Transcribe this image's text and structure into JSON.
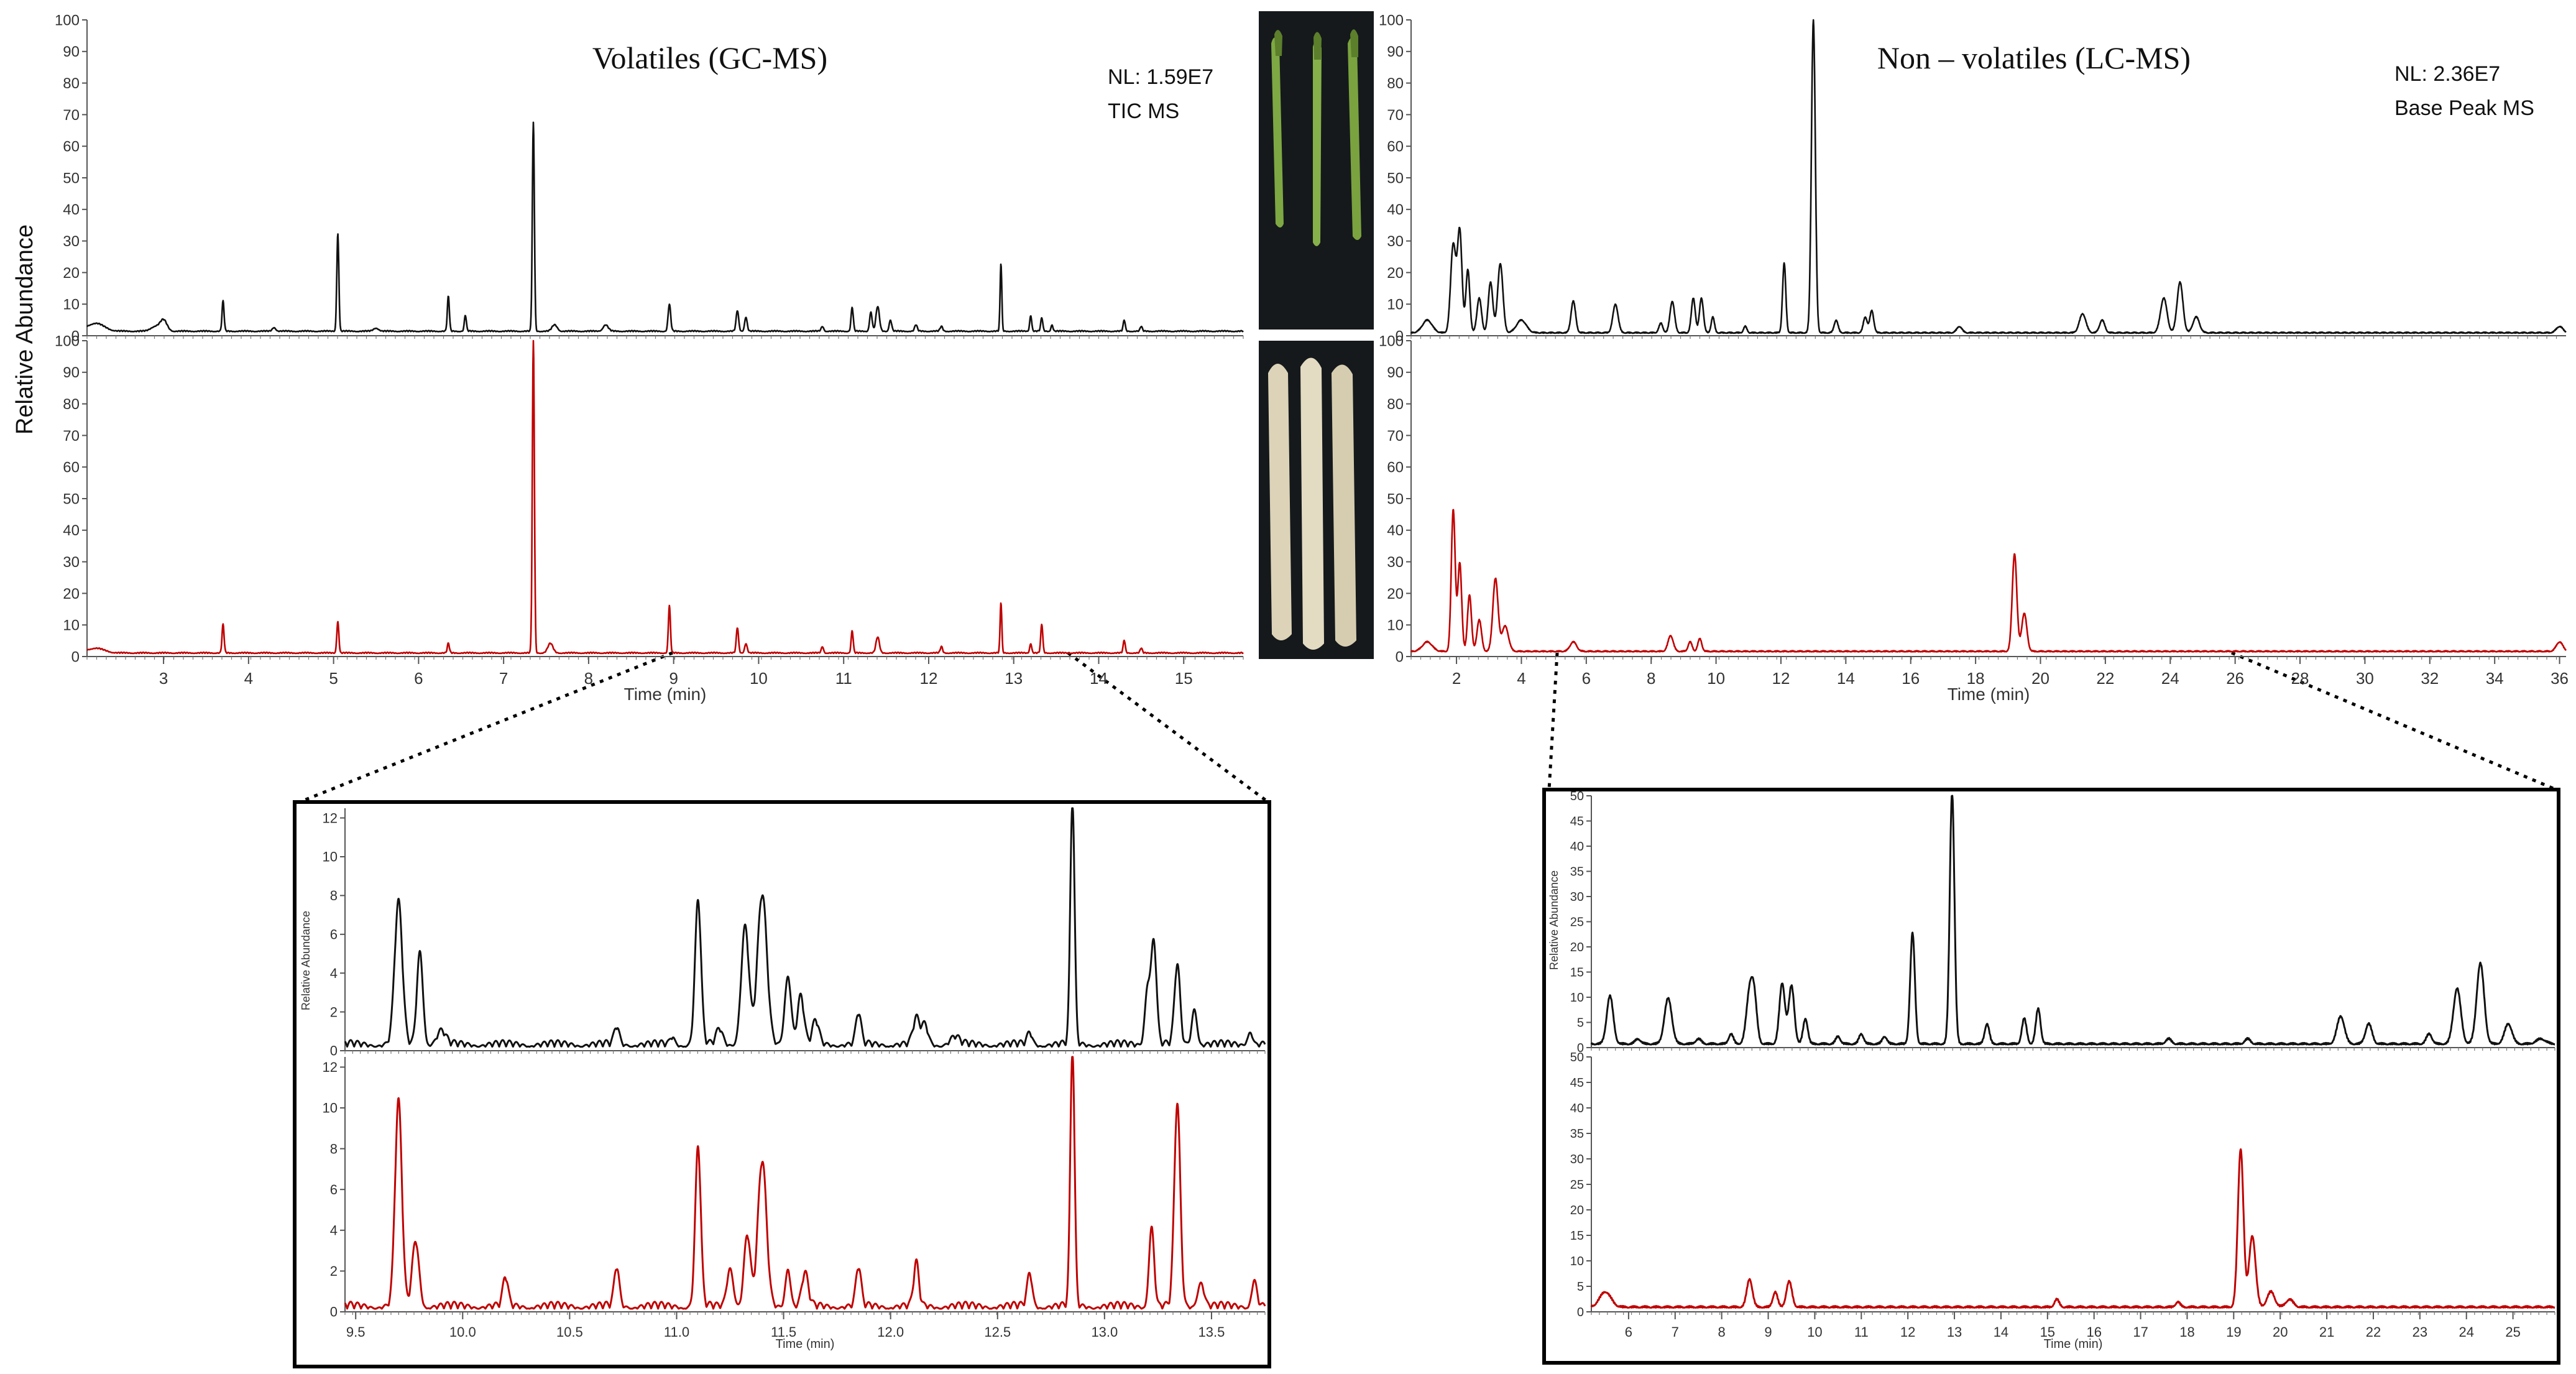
{
  "figure": {
    "ylabel": "Relative Abundance",
    "gc_title": "Volatiles (GC-MS)",
    "lc_title": "Non – volatiles (LC-MS)",
    "gc_nl": "NL: 1.59E7",
    "gc_scan": "TIC MS",
    "lc_nl": "NL: 2.36E7",
    "lc_scan": "Base Peak MS",
    "xlabel": "Time (min)",
    "inset_ylabel": "Relative Abundance"
  },
  "photos": {
    "green_caption": "",
    "white_caption": ""
  },
  "colors": {
    "green_trace": "#111111",
    "white_trace": "#c00000",
    "frame": "#000000",
    "asparagus_green": "#6e9a35",
    "asparagus_white": "#d8cfb4",
    "photo_bg": "#15191c"
  },
  "chart_data": [
    {
      "type": "line",
      "id": "gc-main",
      "title": "Volatiles (GC-MS)",
      "xlabel": "Time (min)",
      "ylabel": "Relative Abundance",
      "xlim": [
        2.1,
        15.7
      ],
      "ylim": [
        0,
        100
      ],
      "xticks": [
        3,
        4,
        5,
        6,
        7,
        8,
        9,
        10,
        11,
        12,
        13,
        14,
        15
      ],
      "yticks": [
        0,
        10,
        20,
        30,
        40,
        50,
        60,
        70,
        80,
        90,
        100
      ],
      "annotations": [
        "NL: 1.59E7",
        "TIC MS"
      ],
      "series": [
        {
          "role": "green asparagus",
          "color": "#111111",
          "baseline": 1.3,
          "peaks": [
            [
              2.2,
              2.5,
              0.1
            ],
            [
              2.9,
              1.5,
              0.05
            ],
            [
              3.0,
              3.5,
              0.04
            ],
            [
              3.7,
              9.5,
              0.012
            ],
            [
              4.3,
              1.2,
              0.02
            ],
            [
              5.05,
              31,
              0.012
            ],
            [
              5.5,
              1,
              0.03
            ],
            [
              6.35,
              11,
              0.012
            ],
            [
              6.55,
              5,
              0.012
            ],
            [
              7.35,
              66,
              0.012
            ],
            [
              7.6,
              2,
              0.03
            ],
            [
              8.2,
              2,
              0.03
            ],
            [
              8.95,
              8.5,
              0.015
            ],
            [
              9.75,
              6.5,
              0.015
            ],
            [
              9.85,
              4.5,
              0.015
            ],
            [
              10.75,
              1.5,
              0.015
            ],
            [
              11.1,
              7.5,
              0.013
            ],
            [
              11.32,
              6,
              0.015
            ],
            [
              11.4,
              7.8,
              0.02
            ],
            [
              11.55,
              3.5,
              0.015
            ],
            [
              11.85,
              2,
              0.015
            ],
            [
              12.15,
              1.5,
              0.015
            ],
            [
              12.85,
              21.5,
              0.01
            ],
            [
              13.2,
              5,
              0.012
            ],
            [
              13.33,
              4.2,
              0.012
            ],
            [
              13.45,
              2,
              0.012
            ],
            [
              14.3,
              3.5,
              0.012
            ],
            [
              14.5,
              1.5,
              0.012
            ]
          ]
        },
        {
          "role": "white asparagus",
          "color": "#c00000",
          "baseline": 1.0,
          "peaks": [
            [
              2.2,
              1.5,
              0.1
            ],
            [
              3.7,
              9,
              0.012
            ],
            [
              5.05,
              10,
              0.012
            ],
            [
              6.35,
              3,
              0.012
            ],
            [
              7.35,
              99,
              0.012
            ],
            [
              7.55,
              3,
              0.03
            ],
            [
              8.95,
              15,
              0.012
            ],
            [
              9.75,
              8,
              0.013
            ],
            [
              9.85,
              3,
              0.015
            ],
            [
              10.75,
              2,
              0.013
            ],
            [
              11.1,
              7,
              0.012
            ],
            [
              11.4,
              5,
              0.02
            ],
            [
              12.15,
              2,
              0.013
            ],
            [
              12.85,
              16,
              0.01
            ],
            [
              13.2,
              3,
              0.012
            ],
            [
              13.33,
              9,
              0.012
            ],
            [
              14.3,
              4,
              0.012
            ],
            [
              14.5,
              1.5,
              0.012
            ]
          ]
        }
      ]
    },
    {
      "type": "line",
      "id": "lc-main",
      "title": "Non – volatiles (LC-MS)",
      "xlabel": "Time (min)",
      "ylabel": "Relative Abundance",
      "xlim": [
        0.6,
        36.2
      ],
      "ylim": [
        0,
        100
      ],
      "xticks": [
        2,
        4,
        6,
        8,
        10,
        12,
        14,
        16,
        18,
        20,
        22,
        24,
        26,
        28,
        30,
        32,
        34,
        36
      ],
      "xtick_labels": [
        "2",
        "4",
        "6",
        "8",
        "10",
        "12",
        "14",
        "16",
        "18",
        "20",
        "22",
        "24",
        "26",
        "28",
        "30",
        "32",
        "34",
        "36"
      ],
      "yticks": [
        0,
        10,
        20,
        30,
        40,
        50,
        60,
        70,
        80,
        90,
        100
      ],
      "annotations": [
        "NL: 2.36E7",
        "Base Peak MS"
      ],
      "series": [
        {
          "role": "green asparagus",
          "color": "#111111",
          "baseline": 0.8,
          "peaks": [
            [
              1.1,
              4,
              0.15
            ],
            [
              1.9,
              28,
              0.08
            ],
            [
              2.1,
              32,
              0.07
            ],
            [
              2.35,
              20,
              0.06
            ],
            [
              2.7,
              11,
              0.07
            ],
            [
              3.05,
              16,
              0.07
            ],
            [
              3.35,
              22,
              0.08
            ],
            [
              4.0,
              4,
              0.15
            ],
            [
              5.6,
              10,
              0.07
            ],
            [
              6.9,
              9,
              0.08
            ],
            [
              8.3,
              3,
              0.06
            ],
            [
              8.65,
              10,
              0.07
            ],
            [
              9.3,
              11,
              0.06
            ],
            [
              9.55,
              11,
              0.06
            ],
            [
              9.9,
              5,
              0.05
            ],
            [
              10.9,
              2,
              0.05
            ],
            [
              12.1,
              22,
              0.05
            ],
            [
              13.0,
              99,
              0.06
            ],
            [
              13.7,
              4,
              0.06
            ],
            [
              14.6,
              5,
              0.06
            ],
            [
              14.8,
              7,
              0.06
            ],
            [
              17.5,
              2,
              0.08
            ],
            [
              21.3,
              6,
              0.1
            ],
            [
              21.9,
              4,
              0.08
            ],
            [
              23.8,
              11,
              0.1
            ],
            [
              24.3,
              16,
              0.09
            ],
            [
              24.8,
              5,
              0.1
            ],
            [
              36,
              2,
              0.1
            ]
          ]
        },
        {
          "role": "white asparagus",
          "color": "#c00000",
          "baseline": 1.5,
          "peaks": [
            [
              1.1,
              3,
              0.15
            ],
            [
              1.9,
              45,
              0.06
            ],
            [
              2.1,
              28,
              0.06
            ],
            [
              2.4,
              18,
              0.06
            ],
            [
              2.7,
              10,
              0.07
            ],
            [
              3.2,
              23,
              0.08
            ],
            [
              3.5,
              8,
              0.1
            ],
            [
              5.6,
              3,
              0.1
            ],
            [
              8.6,
              5,
              0.08
            ],
            [
              9.2,
              3,
              0.06
            ],
            [
              9.5,
              4,
              0.06
            ],
            [
              19.2,
              31,
              0.07
            ],
            [
              19.5,
              12,
              0.08
            ],
            [
              36,
              3,
              0.1
            ]
          ]
        }
      ]
    },
    {
      "type": "line",
      "id": "gc-inset",
      "xlabel": "Time (min)",
      "ylabel": "Relative Abundance",
      "xlim": [
        9.45,
        13.75
      ],
      "ylim": [
        0,
        12.5
      ],
      "xticks": [
        9.5,
        10.0,
        10.5,
        11.0,
        11.5,
        12.0,
        12.5,
        13.0,
        13.5
      ],
      "xtick_labels": [
        "9.5",
        "10.0",
        "10.5",
        "11.0",
        "11.5",
        "12.0",
        "12.5",
        "13.0",
        "13.5"
      ],
      "yticks": [
        0,
        2,
        4,
        6,
        8,
        10,
        12
      ],
      "series": [
        {
          "role": "green asparagus",
          "color": "#111111",
          "baseline": 0.2,
          "peaks": [
            [
              9.7,
              7.3,
              0.018
            ],
            [
              9.8,
              4.8,
              0.014
            ],
            [
              9.9,
              0.7,
              0.02
            ],
            [
              10.72,
              0.9,
              0.012
            ],
            [
              10.98,
              0.4,
              0.01
            ],
            [
              11.1,
              7.4,
              0.014
            ],
            [
              11.2,
              0.8,
              0.015
            ],
            [
              11.32,
              6.1,
              0.018
            ],
            [
              11.4,
              7.7,
              0.022
            ],
            [
              11.52,
              3.6,
              0.015
            ],
            [
              11.58,
              2.5,
              0.015
            ],
            [
              11.65,
              1.2,
              0.015
            ],
            [
              11.85,
              1.6,
              0.012
            ],
            [
              12.12,
              1.3,
              0.015
            ],
            [
              12.16,
              1.0,
              0.015
            ],
            [
              12.3,
              0.4,
              0.02
            ],
            [
              12.65,
              0.6,
              0.012
            ],
            [
              12.85,
              12.5,
              0.01
            ],
            [
              13.2,
              2.8,
              0.012
            ],
            [
              13.23,
              5.3,
              0.013
            ],
            [
              13.34,
              4.1,
              0.013
            ],
            [
              13.42,
              1.9,
              0.012
            ],
            [
              13.68,
              0.7,
              0.012
            ]
          ]
        },
        {
          "role": "white asparagus",
          "color": "#c00000",
          "baseline": 0.15,
          "peaks": [
            [
              9.7,
              10.0,
              0.016
            ],
            [
              9.78,
              3.2,
              0.016
            ],
            [
              10.2,
              1.4,
              0.012
            ],
            [
              10.72,
              1.9,
              0.012
            ],
            [
              11.1,
              7.8,
              0.013
            ],
            [
              11.25,
              1.9,
              0.015
            ],
            [
              11.33,
              3.5,
              0.015
            ],
            [
              11.4,
              7.1,
              0.02
            ],
            [
              11.52,
              1.9,
              0.012
            ],
            [
              11.6,
              1.6,
              0.015
            ],
            [
              11.85,
              1.9,
              0.012
            ],
            [
              12.12,
              2.1,
              0.012
            ],
            [
              12.65,
              1.6,
              0.012
            ],
            [
              12.85,
              12.5,
              0.01
            ],
            [
              13.22,
              3.9,
              0.012
            ],
            [
              13.34,
              9.9,
              0.014
            ],
            [
              13.45,
              1.2,
              0.015
            ],
            [
              13.7,
              1.3,
              0.012
            ]
          ]
        }
      ]
    },
    {
      "type": "line",
      "id": "lc-inset",
      "xlabel": "Time (min)",
      "ylabel": "Relative Abundance",
      "xlim": [
        5.2,
        25.9
      ],
      "ylim": [
        0,
        50
      ],
      "xticks": [
        6,
        7,
        8,
        9,
        10,
        11,
        12,
        13,
        14,
        15,
        16,
        17,
        18,
        19,
        20,
        21,
        22,
        23,
        24,
        25
      ],
      "xtick_labels": [
        "6",
        "7",
        "8",
        "9",
        "10",
        "11",
        "12",
        "13",
        "14",
        "15",
        "16",
        "17",
        "18",
        "19",
        "20",
        "21",
        "22",
        "23",
        "24",
        "25"
      ],
      "yticks": [
        0,
        5,
        10,
        15,
        20,
        25,
        30,
        35,
        40,
        45,
        50
      ],
      "series": [
        {
          "role": "green asparagus",
          "color": "#111111",
          "baseline": 0.6,
          "peaks": [
            [
              5.6,
              9.5,
              0.07
            ],
            [
              6.2,
              1,
              0.06
            ],
            [
              6.85,
              9,
              0.08
            ],
            [
              7.5,
              1,
              0.06
            ],
            [
              8.2,
              2,
              0.05
            ],
            [
              8.6,
              10,
              0.07
            ],
            [
              8.7,
              8,
              0.06
            ],
            [
              9.3,
              12,
              0.06
            ],
            [
              9.5,
              11.5,
              0.06
            ],
            [
              9.8,
              5,
              0.05
            ],
            [
              10.5,
              1.5,
              0.05
            ],
            [
              11.0,
              2,
              0.05
            ],
            [
              11.5,
              1.5,
              0.05
            ],
            [
              12.1,
              22,
              0.05
            ],
            [
              12.95,
              50,
              0.05
            ],
            [
              13.7,
              4,
              0.05
            ],
            [
              14.5,
              5,
              0.05
            ],
            [
              14.8,
              7,
              0.05
            ],
            [
              17.6,
              1,
              0.06
            ],
            [
              19.3,
              1,
              0.06
            ],
            [
              21.3,
              5.5,
              0.08
            ],
            [
              21.9,
              4,
              0.07
            ],
            [
              23.2,
              2,
              0.06
            ],
            [
              23.8,
              11,
              0.08
            ],
            [
              24.3,
              16,
              0.08
            ],
            [
              24.9,
              4,
              0.08
            ],
            [
              25.6,
              1,
              0.1
            ]
          ]
        },
        {
          "role": "white asparagus",
          "color": "#c00000",
          "baseline": 0.8,
          "peaks": [
            [
              5.5,
              3,
              0.12
            ],
            [
              8.6,
              5.5,
              0.06
            ],
            [
              9.15,
              3,
              0.05
            ],
            [
              9.45,
              5,
              0.06
            ],
            [
              15.2,
              1.5,
              0.05
            ],
            [
              17.8,
              1,
              0.05
            ],
            [
              19.15,
              31,
              0.06
            ],
            [
              19.4,
              14,
              0.07
            ],
            [
              19.8,
              3,
              0.08
            ],
            [
              20.2,
              1.5,
              0.08
            ]
          ]
        }
      ]
    }
  ]
}
